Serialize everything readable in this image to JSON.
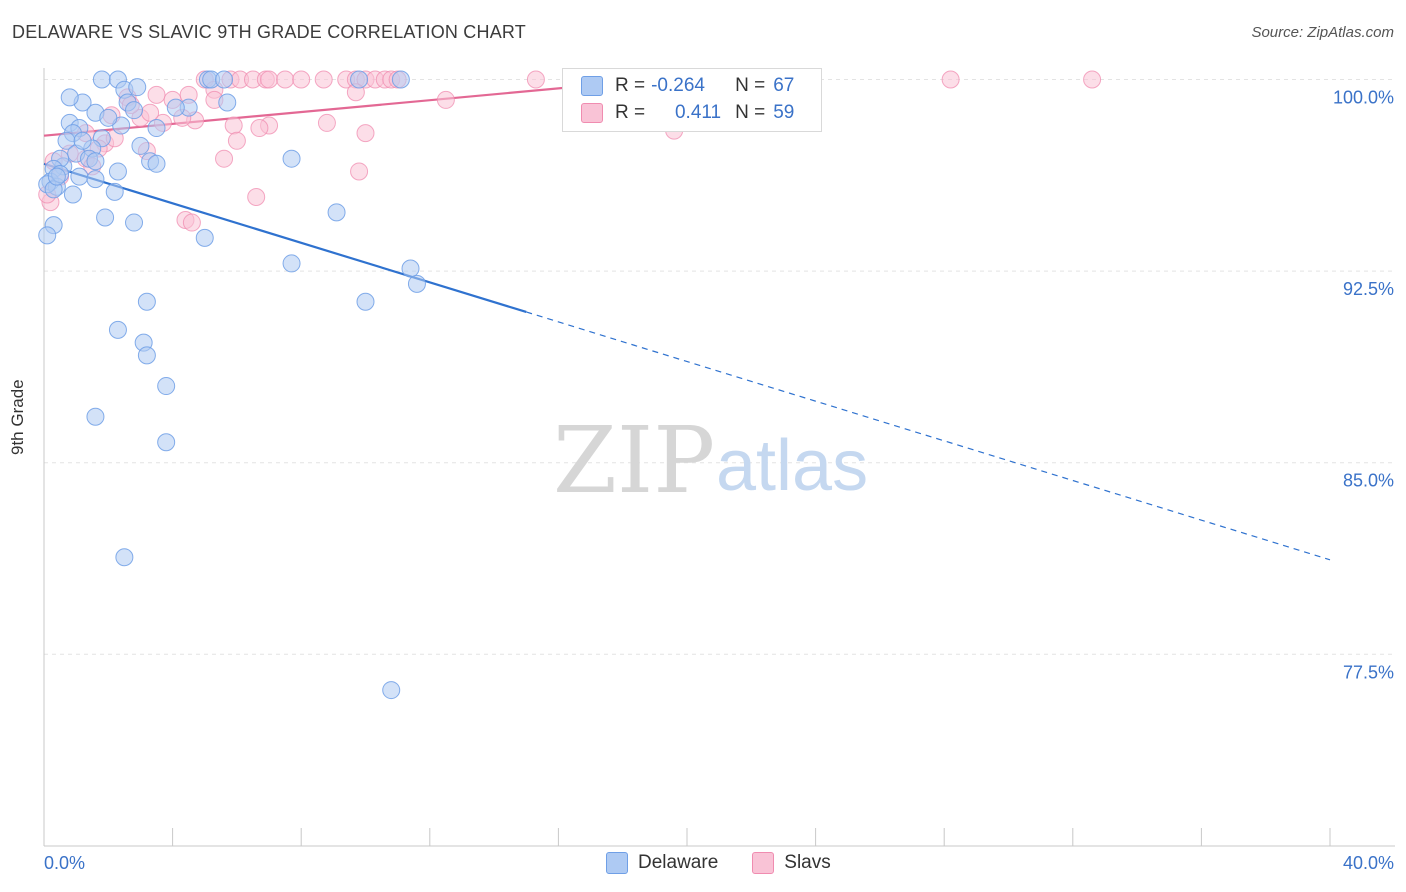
{
  "title": "DELAWARE VS SLAVIC 9TH GRADE CORRELATION CHART",
  "source": "Source: ZipAtlas.com",
  "colors": {
    "delaware": "#6f9fe6",
    "delaware_fill": "#aecaf3",
    "slavs": "#f08cb0",
    "slavs_fill": "#f9c3d6",
    "blue_line": "#2f72cf",
    "pink_line": "#e36894",
    "tick_text": "#3a72c8"
  },
  "legend": {
    "r_label": "R =",
    "n_label": "N =",
    "rows": [
      {
        "r": "-0.264",
        "n": "67"
      },
      {
        "r": "0.411",
        "n": "59"
      }
    ]
  },
  "bottom_legend": [
    "Delaware",
    "Slavs"
  ],
  "watermark": {
    "zip": "ZIP",
    "atlas": "atlas"
  },
  "chart_data": {
    "type": "scatter",
    "title": "DELAWARE VS SLAVIC 9TH GRADE CORRELATION CHART",
    "xlabel": "",
    "ylabel": "9th Grade",
    "xlim": [
      0,
      40
    ],
    "ylim": [
      69.5,
      101.5
    ],
    "x_tick_labels": [
      "0.0%",
      "40.0%"
    ],
    "y_ticks": [
      100.0,
      92.5,
      85.0,
      77.5
    ],
    "y_tick_labels": [
      "100.0%",
      "92.5%",
      "85.0%",
      "77.5%"
    ],
    "grid": true,
    "legend_position": "top-center",
    "series": [
      {
        "name": "Delaware",
        "trend": {
          "x": [
            0.0,
            15.0,
            40.0
          ],
          "y": [
            96.7,
            90.9,
            81.2
          ],
          "solid_to_x": 15.0
        },
        "points": [
          [
            1.8,
            100
          ],
          [
            2.3,
            100
          ],
          [
            5.1,
            100
          ],
          [
            5.2,
            100
          ],
          [
            5.6,
            100
          ],
          [
            9.8,
            100
          ],
          [
            11.1,
            100
          ],
          [
            2.5,
            99.6
          ],
          [
            2.6,
            99.1
          ],
          [
            1.2,
            99.1
          ],
          [
            1.6,
            98.7
          ],
          [
            2.8,
            98.8
          ],
          [
            4.5,
            98.9
          ],
          [
            5.7,
            99.1
          ],
          [
            0.8,
            98.3
          ],
          [
            1.1,
            98.1
          ],
          [
            0.9,
            97.9
          ],
          [
            2.4,
            98.2
          ],
          [
            3.5,
            98.1
          ],
          [
            1.8,
            97.7
          ],
          [
            1.5,
            97.3
          ],
          [
            3.0,
            97.4
          ],
          [
            0.7,
            97.6
          ],
          [
            1.0,
            97.1
          ],
          [
            1.4,
            96.9
          ],
          [
            1.6,
            96.8
          ],
          [
            0.6,
            96.6
          ],
          [
            0.5,
            96.9
          ],
          [
            0.3,
            96.5
          ],
          [
            1.1,
            96.2
          ],
          [
            1.6,
            96.1
          ],
          [
            2.3,
            96.4
          ],
          [
            3.3,
            96.8
          ],
          [
            3.5,
            96.7
          ],
          [
            7.7,
            96.9
          ],
          [
            0.2,
            96.0
          ],
          [
            0.4,
            95.8
          ],
          [
            0.9,
            95.5
          ],
          [
            2.2,
            95.6
          ],
          [
            0.1,
            95.9
          ],
          [
            0.3,
            95.7
          ],
          [
            1.9,
            94.6
          ],
          [
            2.8,
            94.4
          ],
          [
            0.3,
            94.3
          ],
          [
            0.1,
            93.9
          ],
          [
            5.0,
            93.8
          ],
          [
            9.1,
            94.8
          ],
          [
            7.7,
            92.8
          ],
          [
            11.4,
            92.6
          ],
          [
            11.6,
            92.0
          ],
          [
            10.0,
            91.3
          ],
          [
            3.2,
            91.3
          ],
          [
            2.3,
            90.2
          ],
          [
            3.1,
            89.7
          ],
          [
            3.2,
            89.2
          ],
          [
            3.8,
            88.0
          ],
          [
            1.6,
            86.8
          ],
          [
            3.8,
            85.8
          ],
          [
            2.5,
            81.3
          ],
          [
            10.8,
            76.1
          ],
          [
            0.5,
            96.3
          ],
          [
            1.2,
            97.6
          ],
          [
            2.0,
            98.5
          ],
          [
            0.8,
            99.3
          ],
          [
            4.1,
            98.9
          ],
          [
            2.9,
            99.7
          ],
          [
            0.4,
            96.2
          ]
        ]
      },
      {
        "name": "Slavs",
        "trend": {
          "x": [
            0.0,
            19.0
          ],
          "y": [
            97.8,
            100.0
          ],
          "solid_to_x": 19.0
        },
        "points": [
          [
            5.0,
            100
          ],
          [
            5.8,
            100
          ],
          [
            6.1,
            100
          ],
          [
            6.5,
            100
          ],
          [
            6.9,
            100
          ],
          [
            7.0,
            100
          ],
          [
            7.5,
            100
          ],
          [
            8.0,
            100
          ],
          [
            8.7,
            100
          ],
          [
            9.4,
            100
          ],
          [
            9.7,
            100
          ],
          [
            10.0,
            100
          ],
          [
            10.3,
            100
          ],
          [
            10.6,
            100
          ],
          [
            10.8,
            100
          ],
          [
            11.0,
            100
          ],
          [
            15.3,
            100
          ],
          [
            17.3,
            100
          ],
          [
            28.2,
            100
          ],
          [
            32.6,
            100
          ],
          [
            2.6,
            99.3
          ],
          [
            3.5,
            99.4
          ],
          [
            4.0,
            99.2
          ],
          [
            4.5,
            99.4
          ],
          [
            5.3,
            99.6
          ],
          [
            5.3,
            99.2
          ],
          [
            9.7,
            99.5
          ],
          [
            12.5,
            99.2
          ],
          [
            2.1,
            98.6
          ],
          [
            3.0,
            98.5
          ],
          [
            3.7,
            98.3
          ],
          [
            4.7,
            98.4
          ],
          [
            5.9,
            98.2
          ],
          [
            7.0,
            98.2
          ],
          [
            8.8,
            98.3
          ],
          [
            10.0,
            97.9
          ],
          [
            19.6,
            98.0
          ],
          [
            1.3,
            97.9
          ],
          [
            1.9,
            97.5
          ],
          [
            2.2,
            97.7
          ],
          [
            3.2,
            97.2
          ],
          [
            6.0,
            97.6
          ],
          [
            0.8,
            97.1
          ],
          [
            1.3,
            96.9
          ],
          [
            5.6,
            96.9
          ],
          [
            9.8,
            96.4
          ],
          [
            0.3,
            96.8
          ],
          [
            0.5,
            96.2
          ],
          [
            1.5,
            96.6
          ],
          [
            6.6,
            95.4
          ],
          [
            4.4,
            94.5
          ],
          [
            4.6,
            94.4
          ],
          [
            0.2,
            95.2
          ],
          [
            0.1,
            95.5
          ],
          [
            2.7,
            99.0
          ],
          [
            4.3,
            98.5
          ],
          [
            3.3,
            98.7
          ],
          [
            6.7,
            98.1
          ],
          [
            1.7,
            97.3
          ]
        ]
      }
    ]
  }
}
